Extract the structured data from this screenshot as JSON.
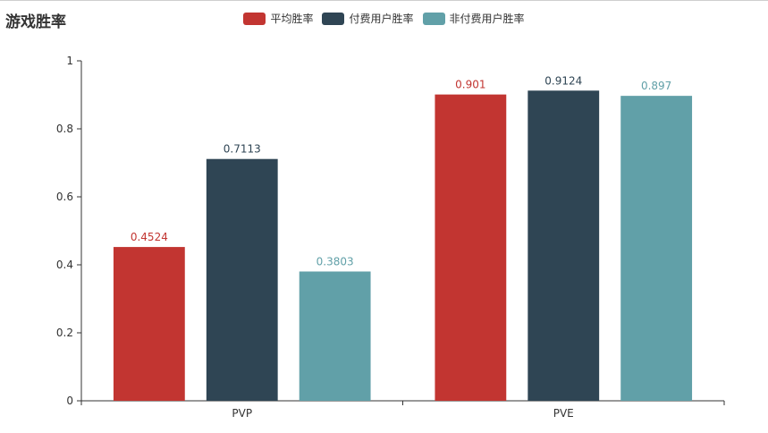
{
  "chart_data": {
    "type": "bar",
    "title": "游戏胜率",
    "categories": [
      "PVP",
      "PVE"
    ],
    "series": [
      {
        "name": "平均胜率",
        "values": [
          0.4524,
          0.901
        ],
        "color": "#c23531"
      },
      {
        "name": "付费用户胜率",
        "values": [
          0.7113,
          0.9124
        ],
        "color": "#2f4554"
      },
      {
        "name": "非付费用户胜率",
        "values": [
          0.3803,
          0.897
        ],
        "color": "#61a0a8"
      }
    ],
    "ylim": [
      0,
      1
    ],
    "yticks": [
      "0",
      "0.2",
      "0.4",
      "0.6",
      "0.8",
      "1"
    ],
    "grid": false,
    "legend_position": "top-center"
  }
}
